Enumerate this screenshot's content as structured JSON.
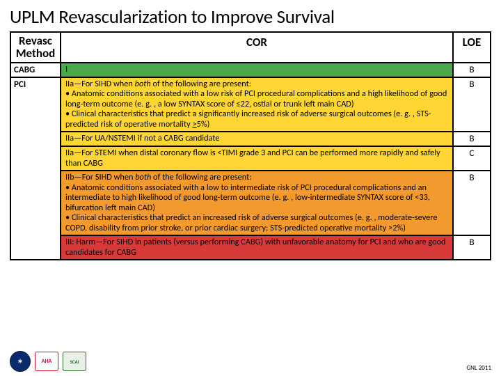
{
  "title": "UPLM Revascularization to Improve Survival",
  "headers": {
    "method": "Revasc Method",
    "cor": "COR",
    "loe": "LOE"
  },
  "colors": {
    "green": "#4aa94a",
    "yellow": "#ffd633",
    "orange": "#f29a2e",
    "red": "#d83a3a",
    "white": "#ffffff"
  },
  "rows": [
    {
      "method": "CABG",
      "cor_html": "I",
      "loe": "B",
      "bg": "green",
      "rowspan_method": 1
    },
    {
      "method": "PCI",
      "rowspan_method": 5,
      "cor_html": "IIa—For SIHD when <i>both</i> of the following are present:<br><span class='bullet'>• Anatomic conditions associated with a low risk of PCI procedural complications and a high likelihood of good long-term outcome (e. g. , a low SYNTAX score of ≤22, ostial or trunk left main CAD)</span><br><span class='bullet'>• Clinical characteristics that predict a significantly increased risk of adverse surgical outcomes (e. g. , STS-predicted risk of operative mortality <u>></u>5%)</span>",
      "loe": "B",
      "bg": "yellow"
    },
    {
      "cor_html": "IIa—For UA/NSTEMI if not a CABG candidate",
      "loe": "B",
      "bg": "yellow"
    },
    {
      "cor_html": "IIa—For STEMI when distal coronary flow is &lt;TIMI grade 3 and PCI can be performed more rapidly and safely than CABG",
      "loe": "C",
      "bg": "yellow"
    },
    {
      "cor_html": "IIb—For SIHD when <i>both</i> of the following are present:<br><span class='bullet'>• Anatomic conditions associated with a low to intermediate risk of PCI procedural complications and an intermediate to high likelihood of good long-term outcome (e. g. , low-intermediate SYNTAX score of &lt;33, bifurcation left main CAD)</span><br><span class='bullet'>• Clinical characteristics that predict an increased risk of adverse surgical outcomes (e. g. , moderate-severe COPD, disability from prior stroke, or prior cardiac surgery; STS-predicted operative mortality &gt;2%)</span>",
      "loe": "B",
      "bg": "orange"
    },
    {
      "cor_html": "III: Harm—For SIHD in patients (versus performing CABG) with unfavorable anatomy for PCI and who are good candidates for CABG",
      "loe": "B",
      "bg": "red"
    }
  ],
  "logos": {
    "acc": "✶",
    "aha": "AHA",
    "scai": "SCAI"
  },
  "cite": "GNL 2011"
}
